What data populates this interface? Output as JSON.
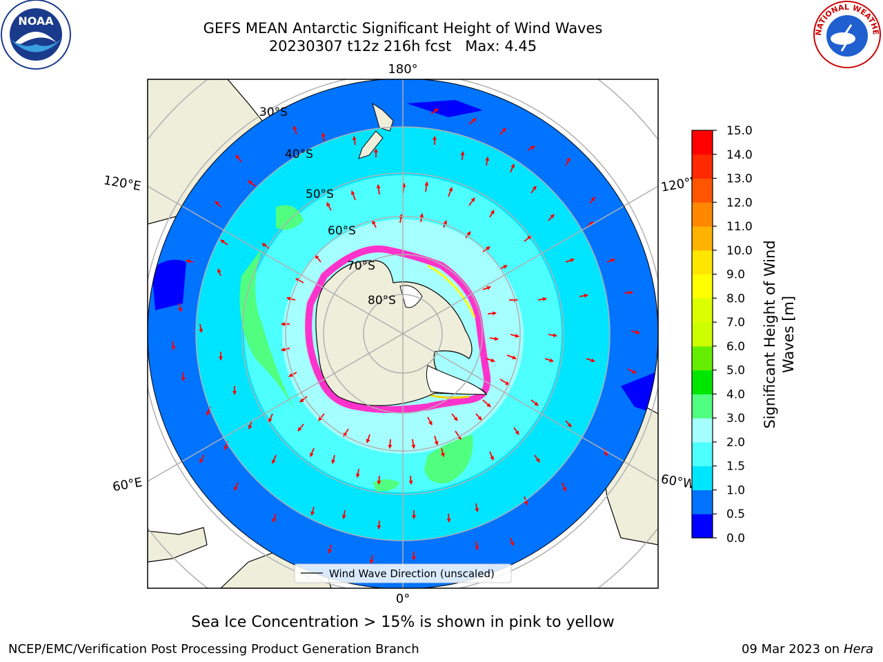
{
  "title": {
    "line1": "GEFS MEAN Antarctic Significant Height of Wind Waves",
    "line2": "20230307 t12z 216h fcst   Max: 4.45"
  },
  "logos": {
    "left": "noaa-logo",
    "right": "national-weather-service-logo",
    "left_text": "NOAA",
    "right_text": "NATIONAL WEATHER SERVICE"
  },
  "map": {
    "projection": "south-polar-stereographic",
    "longitude_labels": {
      "top": "180°",
      "bottom": "0°",
      "left_upper": "120°E",
      "left_lower": "60°E",
      "right_upper": "120°W",
      "right_lower": "60°W"
    },
    "latitude_labels": [
      "30°S",
      "40°S",
      "50°S",
      "60°S",
      "70°S",
      "80°S"
    ],
    "legend": "Wind Wave Direction (unscaled)",
    "arrow_color": "#ff0000",
    "land_color": "#efeedb",
    "ice_colors": [
      "#ff33cc",
      "#ffff00"
    ]
  },
  "colorbar": {
    "label": "Significant Height of Wind Waves [m]",
    "label_line1": "Significant Height of Wind",
    "label_line2": "Waves [m]",
    "ticks": [
      "0.0",
      "0.5",
      "1.0",
      "1.5",
      "2.0",
      "3.0",
      "4.0",
      "5.0",
      "6.0",
      "7.0",
      "8.0",
      "9.0",
      "10.0",
      "11.0",
      "12.0",
      "13.0",
      "14.0",
      "15.0"
    ],
    "colors": [
      "#0000ff",
      "#0073ff",
      "#00e5ff",
      "#4dffff",
      "#a5ffff",
      "#50ff80",
      "#00e600",
      "#66ee00",
      "#ccff00",
      "#dcff00",
      "#ffff00",
      "#ffe600",
      "#ffb300",
      "#ff8800",
      "#ff5500",
      "#ff2a00",
      "#ff0000"
    ]
  },
  "note": "Sea Ice Concentration > 15% is shown in pink to yellow",
  "footer": {
    "left": "NCEP/EMC/Verification Post Processing Product Generation Branch",
    "right_date": "09 Mar 2023 on",
    "right_host": "Hera"
  }
}
